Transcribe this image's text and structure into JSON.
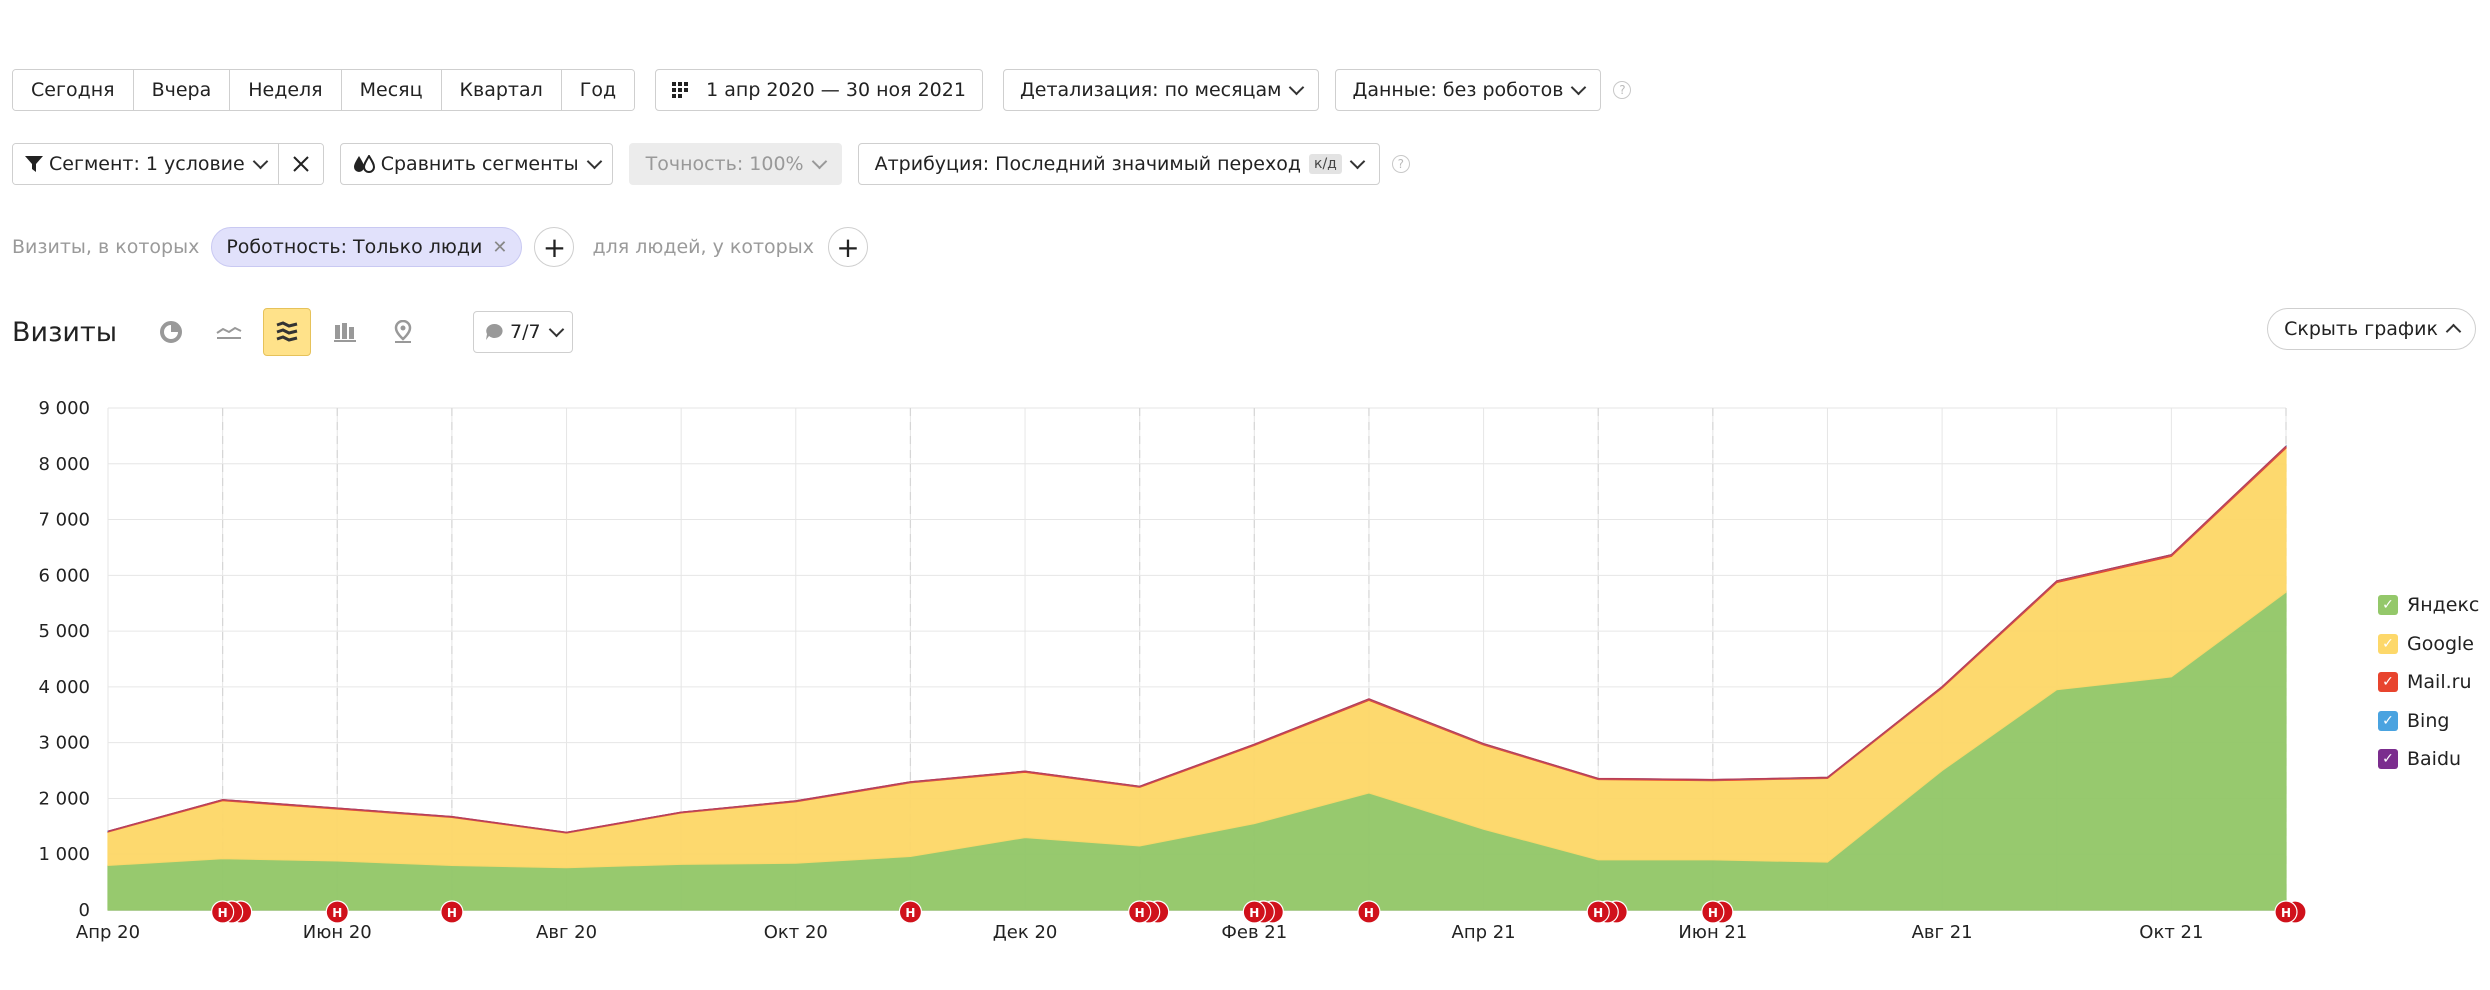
{
  "period_tabs": [
    "Сегодня",
    "Вчера",
    "Неделя",
    "Месяц",
    "Квартал",
    "Год"
  ],
  "date_range": "1 апр 2020 — 30 ноя 2021",
  "detail_label": "Детализация: по месяцам",
  "data_label": "Данные: без роботов",
  "help_glyph": "?",
  "segment_label": "Сегмент: 1 условие",
  "compare_label": "Сравнить сегменты",
  "accuracy_label": "Точность: 100%",
  "attribution_label": "Атрибуция: Последний значимый переход",
  "attribution_badge": "к/д",
  "filter": {
    "visits_prefix": "Визиты, в которых",
    "pill_label": "Роботность: Только люди",
    "people_prefix": "для людей, у которых"
  },
  "title": "Визиты",
  "notes_counter": "7/7",
  "hide_chart_label": "Скрыть график",
  "colors": {
    "yandex": "#94c86a",
    "google": "#fdd86a",
    "mailru": "#e8442e",
    "bing": "#4aa3e0",
    "baidu": "#7b2d8e",
    "note": "#d0111b"
  },
  "chart_data": {
    "type": "area",
    "stacked": true,
    "x": [
      "2020-04",
      "2020-05",
      "2020-06",
      "2020-07",
      "2020-08",
      "2020-09",
      "2020-10",
      "2020-11",
      "2020-12",
      "2021-01",
      "2021-02",
      "2021-03",
      "2021-04",
      "2021-05",
      "2021-06",
      "2021-07",
      "2021-08",
      "2021-09",
      "2021-10",
      "2021-11"
    ],
    "x_tick_labels": [
      "Апр 20",
      "Июн 20",
      "Авг 20",
      "Окт 20",
      "Дек 20",
      "Фев 21",
      "Апр 21",
      "Июн 21",
      "Авг 21",
      "Окт 21"
    ],
    "y_ticks": [
      "0",
      "1 000",
      "2 000",
      "3 000",
      "4 000",
      "5 000",
      "6 000",
      "7 000",
      "8 000",
      "9 000"
    ],
    "ylim": [
      0,
      9000
    ],
    "series": [
      {
        "name": "Яндекс",
        "color": "#94c86a",
        "values": [
          800,
          920,
          880,
          800,
          760,
          820,
          840,
          960,
          1300,
          1150,
          1550,
          2100,
          1450,
          900,
          900,
          860,
          2500,
          3950,
          4180,
          5700
        ]
      },
      {
        "name": "Google",
        "color": "#fdd86a",
        "values": [
          600,
          1040,
          930,
          860,
          620,
          920,
          1100,
          1320,
          1170,
          1050,
          1400,
          1660,
          1510,
          1440,
          1420,
          1500,
          1480,
          1920,
          2160,
          2580
        ]
      },
      {
        "name": "Mail.ru",
        "color": "#e8442e",
        "values": [
          10,
          15,
          15,
          12,
          10,
          12,
          14,
          15,
          16,
          15,
          18,
          20,
          18,
          15,
          15,
          15,
          20,
          25,
          25,
          30
        ]
      },
      {
        "name": "Bing",
        "color": "#4aa3e0",
        "values": [
          2,
          3,
          3,
          2,
          2,
          2,
          3,
          3,
          3,
          3,
          3,
          4,
          3,
          3,
          3,
          3,
          4,
          4,
          4,
          5
        ]
      },
      {
        "name": "Baidu",
        "color": "#7b2d8e",
        "values": [
          0,
          0,
          0,
          0,
          0,
          0,
          0,
          0,
          0,
          0,
          0,
          0,
          0,
          0,
          0,
          0,
          0,
          0,
          0,
          0
        ]
      }
    ],
    "notes_marker": "Н",
    "notes": [
      {
        "x": "2020-05",
        "count": 3
      },
      {
        "x": "2020-06",
        "count": 1
      },
      {
        "x": "2020-07",
        "count": 1
      },
      {
        "x": "2020-11",
        "count": 1
      },
      {
        "x": "2021-01",
        "count": 3
      },
      {
        "x": "2021-02",
        "count": 3
      },
      {
        "x": "2021-03",
        "count": 1
      },
      {
        "x": "2021-05",
        "count": 3
      },
      {
        "x": "2021-06",
        "count": 2
      },
      {
        "x": "2021-11",
        "count": 2
      }
    ],
    "grid": true,
    "legend_position": "right"
  }
}
